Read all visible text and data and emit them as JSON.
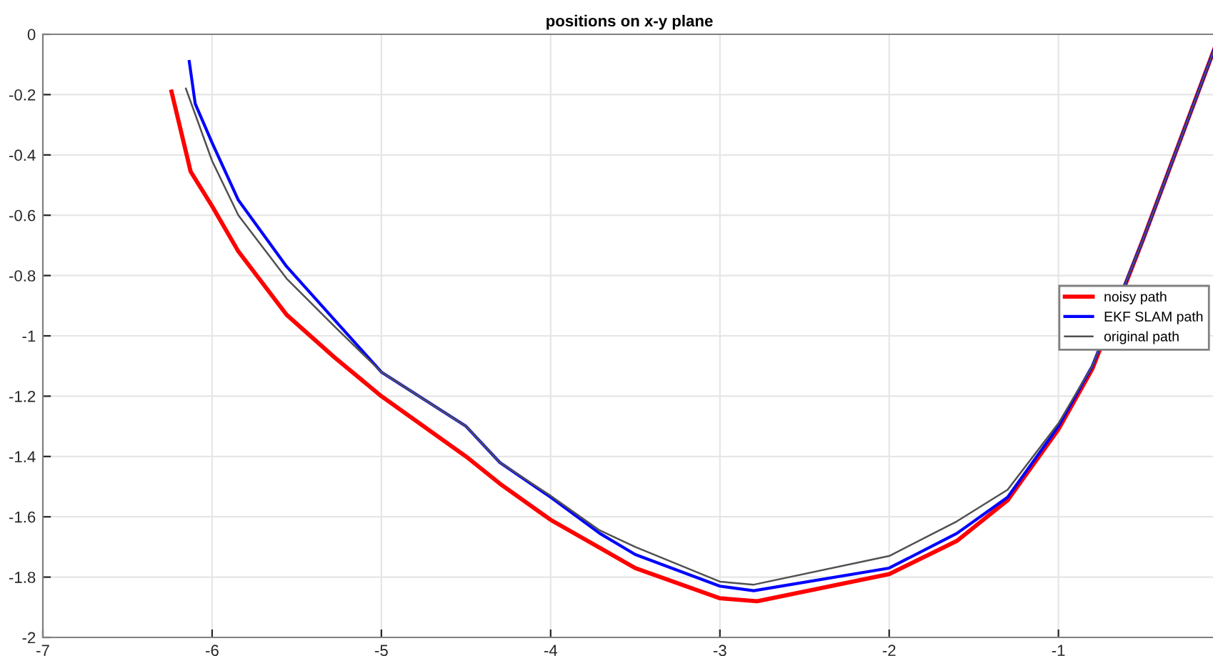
{
  "chart_data": {
    "type": "line",
    "title": "positions on x-y plane",
    "xlim": [
      -7,
      -0.07
    ],
    "ylim": [
      -2,
      0
    ],
    "xticks": [
      -7,
      -6,
      -5,
      -4,
      -3,
      -2,
      -1
    ],
    "yticks": [
      -2,
      -1.8,
      -1.6,
      -1.4,
      -1.2,
      -1,
      -0.8,
      -0.6,
      -0.4,
      -0.2,
      0
    ],
    "grid": true,
    "legend": "right",
    "series": [
      {
        "name": "noisy path",
        "color": "#ff0000",
        "x": [
          -6.24,
          -6.127,
          -6.0,
          -5.845,
          -5.56,
          -5.28,
          -5.0,
          -4.5,
          -4.3,
          -4.0,
          -3.5,
          -3.0,
          -2.78,
          -2.0,
          -1.6,
          -1.3,
          -1.0,
          -0.8,
          -0.5,
          -0.08
        ],
        "values": [
          -0.19,
          -0.455,
          -0.57,
          -0.72,
          -0.93,
          -1.07,
          -1.2,
          -1.4,
          -1.49,
          -1.61,
          -1.77,
          -1.87,
          -1.88,
          -1.79,
          -1.68,
          -1.545,
          -1.31,
          -1.11,
          -0.68,
          -0.05
        ]
      },
      {
        "name": "EKF SLAM path",
        "color": "#0000ff",
        "x": [
          -6.135,
          -6.1,
          -6.0,
          -5.845,
          -5.56,
          -5.28,
          -5.0,
          -4.5,
          -4.3,
          -4.0,
          -3.71,
          -3.5,
          -3.0,
          -2.8,
          -2.0,
          -1.6,
          -1.3,
          -1.0,
          -0.8,
          -0.5,
          -0.08
        ],
        "values": [
          -0.09,
          -0.23,
          -0.36,
          -0.55,
          -0.77,
          -0.945,
          -1.12,
          -1.3,
          -1.42,
          -1.535,
          -1.655,
          -1.725,
          -1.83,
          -1.845,
          -1.77,
          -1.655,
          -1.535,
          -1.3,
          -1.1,
          -0.68,
          -0.05
        ]
      },
      {
        "name": "original path",
        "color": "#505050",
        "x": [
          -6.155,
          -6.0,
          -5.845,
          -5.56,
          -5.28,
          -5.0,
          -4.5,
          -4.3,
          -4.0,
          -3.71,
          -3.5,
          -3.0,
          -2.8,
          -2.0,
          -1.6,
          -1.3,
          -1.0,
          -0.8,
          -0.5,
          -0.08
        ],
        "values": [
          -0.18,
          -0.42,
          -0.6,
          -0.81,
          -0.967,
          -1.12,
          -1.3,
          -1.42,
          -1.53,
          -1.645,
          -1.7,
          -1.815,
          -1.825,
          -1.73,
          -1.615,
          -1.51,
          -1.29,
          -1.1,
          -0.68,
          -0.05
        ]
      }
    ]
  }
}
